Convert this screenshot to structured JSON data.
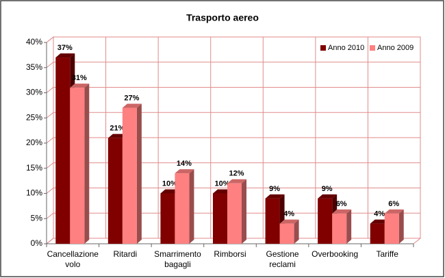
{
  "chart_data": {
    "type": "bar3d",
    "title": "Trasporto aereo",
    "categories": [
      "Cancellazione volo",
      "Ritardi",
      "Smarrimento bagagli",
      "Rimborsi",
      "Gestione reclami",
      "Overbooking",
      "Tariffe"
    ],
    "series": [
      {
        "name": "Anno 2010",
        "color": "#800000",
        "values": [
          37,
          21,
          10,
          10,
          9,
          9,
          4
        ],
        "value_labels": [
          "37%",
          "21%",
          "10%",
          "10%",
          "9%",
          "9%",
          "4%"
        ]
      },
      {
        "name": "Anno 2009",
        "color": "#ff8080",
        "values": [
          31,
          27,
          14,
          12,
          4,
          6,
          6
        ],
        "value_labels": [
          "31%",
          "27%",
          "14%",
          "12%",
          "4%",
          "6%",
          "6%"
        ]
      }
    ],
    "ylim": [
      0,
      40
    ],
    "yticks": [
      {
        "value": 0,
        "label": "0%"
      },
      {
        "value": 5,
        "label": "5%"
      },
      {
        "value": 10,
        "label": "10%"
      },
      {
        "value": 15,
        "label": "15%"
      },
      {
        "value": 20,
        "label": "20%"
      },
      {
        "value": 25,
        "label": "25%"
      },
      {
        "value": 30,
        "label": "30%"
      },
      {
        "value": 35,
        "label": "35%"
      },
      {
        "value": 40,
        "label": "40%"
      }
    ],
    "grid": true,
    "legend": "top-right"
  }
}
